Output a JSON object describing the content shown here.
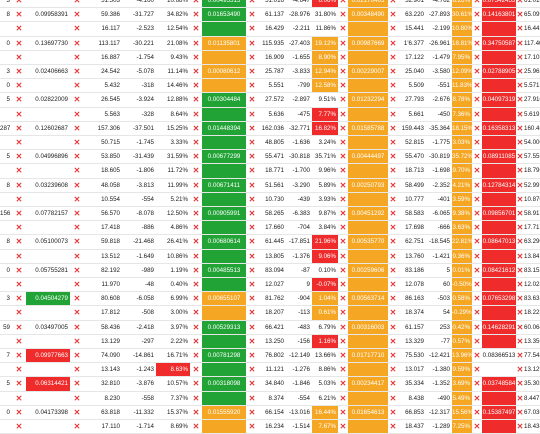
{
  "rows": [
    {
      "a": "3",
      "b1": "",
      "v1": "51.503",
      "v2": "-4.160",
      "p1": "10.68%",
      "g": "0.00495515",
      "g_color": "green",
      "r1": "51.016",
      "r2": "-4.647",
      "p2": "6.06%",
      "p2_hl": "red",
      "o": "0.02170405",
      "s1": "52.901",
      "s2": "-4.762",
      "p3": "8.26%",
      "p3_hl": "orange",
      "r": "0.07542453",
      "r_color": "red",
      "e": "61.016"
    },
    {
      "a": "8",
      "b1": "0.09958391",
      "v1": "59.386",
      "v2": "-31.727",
      "p1": "34.82%",
      "g": "0.01653490",
      "g_color": "green",
      "r1": "61.137",
      "r2": "-28.976",
      "p2": "31.80%",
      "p2_hl": "",
      "o": "0.00348490",
      "s1": "63.220",
      "s2": "-27.893",
      "p3": "30.61%",
      "p3_hl": "orange",
      "r": "0.14163801",
      "r_color": "red",
      "e": "65.099"
    },
    {
      "a": "",
      "b1": "",
      "v1": "16.117",
      "v2": "-2.523",
      "p1": "12.54%",
      "g": "",
      "g_color": "green",
      "r1": "16.429",
      "r2": "-2.211",
      "p2": "11.86%",
      "p2_hl": "",
      "o": "",
      "s1": "15.441",
      "s2": "-2.199",
      "p3": "10.80%",
      "p3_hl": "orange",
      "r": "",
      "r_color": "red",
      "e": "16.442"
    },
    {
      "a": "0",
      "b1": "0.13697730",
      "v1": "113.117",
      "v2": "-30.221",
      "p1": "21.08%",
      "g": "0.01135801",
      "g_color": "orange",
      "r1": "115.935",
      "r2": "-27.403",
      "p2": "19.12%",
      "p2_hl": "orange",
      "o": "0.00987669",
      "s1": "1'6.377",
      "s2": "-26.961",
      "p3": "18.81%",
      "p3_hl": "orange",
      "r": "0.34750587",
      "r_color": "red",
      "e": "117.400"
    },
    {
      "a": "",
      "b1": "",
      "v1": "16.887",
      "v2": "-1.754",
      "p1": "9.43%",
      "g": "",
      "g_color": "orange",
      "r1": "16.909",
      "r2": "-1.655",
      "p2": "8.90%",
      "p2_hl": "orange",
      "o": "",
      "s1": "17.122",
      "s2": "-1.479",
      "p3": "7.95%",
      "p3_hl": "orange",
      "r": "",
      "r_color": "red",
      "e": "17.103"
    },
    {
      "a": "3",
      "b1": "0.02406663",
      "v1": "24.542",
      "v2": "-5.078",
      "p1": "11.14%",
      "g": "0.00080612",
      "g_color": "orange",
      "r1": "25.787",
      "r2": "-3.833",
      "p2": "12.94%",
      "p2_hl": "orange",
      "o": "0.00229007",
      "s1": "25.040",
      "s2": "-3.580",
      "p3": "12.09%",
      "p3_hl": "orange",
      "r": "0.02788905",
      "r_color": "red",
      "e": "25.965"
    },
    {
      "a": "0",
      "b1": "",
      "v1": "5.432",
      "v2": "-318",
      "p1": "14.46%",
      "g": "",
      "g_color": "orange",
      "r1": "5.551",
      "p2": "12.58%",
      "r2": "-799",
      "p2_hl": "orange",
      "o": "",
      "s1": "5.509",
      "s2": "-551",
      "p3": "11.83%",
      "p3_hl": "orange",
      "r": "",
      "r_color": "red",
      "e": "5.571"
    },
    {
      "a": "5",
      "b1": "0.02822009",
      "v1": "26.545",
      "v2": "-3.924",
      "p1": "12.88%",
      "g": "0.00304484",
      "g_color": "green",
      "r1": "27.572",
      "r2": "-2.897",
      "p2": "9.51%",
      "p2_hl": "",
      "o": "0.01232294",
      "s1": "27.793",
      "s2": "-2.676",
      "p3": "8.78%",
      "p3_hl": "orange",
      "r": "0.04097319",
      "r_color": "red",
      "e": "27.910"
    },
    {
      "a": "",
      "b1": "",
      "v1": "5.563",
      "v2": "-328",
      "p1": "8.64%",
      "g": "",
      "g_color": "green",
      "r1": "5.636",
      "r2": "-475",
      "p2": "7.77%",
      "p2_hl": "red",
      "o": "",
      "s1": "5.661",
      "s2": "-450",
      "p3": "7.36%",
      "p3_hl": "orange",
      "r": "",
      "r_color": "red",
      "e": "5.619"
    },
    {
      "a": "287",
      "b1": "0.12602687",
      "v1": "157.306",
      "v2": "-37.501",
      "p1": "15.25%",
      "g": "0.01448394",
      "g_color": "green",
      "r1": "162.036",
      "r2": "-32.771",
      "p2": "16.82%",
      "p2_hl": "red",
      "o": "0.01585788",
      "s1": "159.443",
      "s2": "-35.364",
      "p3": "18.15%",
      "p3_hl": "orange",
      "r": "0.16358313",
      "r_color": "red",
      "e": "160.465"
    },
    {
      "a": "",
      "b1": "",
      "v1": "50.715",
      "v2": "-1.745",
      "p1": "3.33%",
      "g": "",
      "g_color": "green",
      "r1": "48.805",
      "r2": "-1.636",
      "p2": "3.24%",
      "p2_hl": "",
      "o": "",
      "s1": "52.815",
      "s2": "-1.775",
      "p3": "3.03%",
      "p3_hl": "orange",
      "r": "",
      "r_color": "red",
      "e": "54.000"
    },
    {
      "a": "5",
      "b1": "0.04996896",
      "v1": "53.850",
      "v2": "-31.439",
      "p1": "31.59%",
      "g": "0.00677299",
      "g_color": "green",
      "r1": "55.471",
      "r2": "-30.818",
      "p2": "35.71%",
      "p2_hl": "",
      "o": "0.00444497",
      "s1": "55.470",
      "s2": "-30.819",
      "p3": "35.72%",
      "p3_hl": "orange",
      "r": "0.08911085",
      "r_color": "red",
      "e": "57.555"
    },
    {
      "a": "",
      "b1": "",
      "v1": "18.605",
      "v2": "-1.806",
      "p1": "11.72%",
      "g": "",
      "g_color": "green",
      "r1": "18.771",
      "r2": "-1.700",
      "p2": "9.96%",
      "p2_hl": "",
      "o": "",
      "s1": "18.713",
      "s2": "-1.698",
      "p3": "9.70%",
      "p3_hl": "orange",
      "r": "",
      "r_color": "red",
      "e": "18.796"
    },
    {
      "a": "8",
      "b1": "0.03239608",
      "v1": "48.058",
      "v2": "-3.813",
      "p1": "11.99%",
      "g": "0.00671411",
      "g_color": "green",
      "r1": "51.561",
      "r2": "-3.290",
      "p2": "5.89%",
      "p2_hl": "",
      "o": "0.00250793",
      "s1": "58.499",
      "s2": "-2.352",
      "p3": "4.21%",
      "p3_hl": "orange",
      "r": "0.12784314",
      "r_color": "red",
      "e": "52.997"
    },
    {
      "a": "",
      "b1": "",
      "v1": "10.554",
      "v2": "-554",
      "p1": "5.21%",
      "g": "",
      "g_color": "green",
      "r1": "10.730",
      "r2": "-439",
      "p2": "3.93%",
      "p2_hl": "",
      "o": "",
      "s1": "10.777",
      "s2": "-401",
      "p3": "3.59%",
      "p3_hl": "orange",
      "r": "",
      "r_color": "red",
      "e": "10.870"
    },
    {
      "a": "156",
      "b1": "0.07782157",
      "v1": "56.570",
      "v2": "-8.078",
      "p1": "12.50%",
      "g": "0.00905991",
      "g_color": "green",
      "r1": "58.265",
      "r2": "-6.383",
      "p2": "9.87%",
      "p2_hl": "",
      "o": "0.00451292",
      "s1": "58.583",
      "s2": "-6.065",
      "p3": "9.38%",
      "p3_hl": "orange",
      "r": "0.09856701",
      "r_color": "red",
      "e": "58.917"
    },
    {
      "a": "",
      "b1": "",
      "v1": "17.418",
      "v2": "-886",
      "p1": "4.86%",
      "g": "",
      "g_color": "green",
      "r1": "17.660",
      "r2": "-704",
      "p2": "3.84%",
      "p2_hl": "",
      "o": "",
      "s1": "17.698",
      "s2": "-666",
      "p3": "3.63%",
      "p3_hl": "orange",
      "r": "",
      "r_color": "red",
      "e": "17.717"
    },
    {
      "a": "8",
      "b1": "0.05100073",
      "v1": "59.818",
      "v2": "-21.468",
      "p1": "26.41%",
      "g": "0.00680614",
      "g_color": "green",
      "r1": "61.445",
      "r2": "-17.851",
      "p2": "21.96%",
      "p2_hl": "red",
      "o": "0.00535770",
      "s1": "62.751",
      "s2": "-18.545",
      "p3": "22.81%",
      "p3_hl": "orange",
      "r": "0.08647013",
      "r_color": "red",
      "e": "63.290"
    },
    {
      "a": "",
      "b1": "",
      "v1": "13.512",
      "v2": "-1.649",
      "p1": "10.86%",
      "g": "",
      "g_color": "green",
      "r1": "13.805",
      "r2": "-1.376",
      "p2": "9.06%",
      "p2_hl": "red",
      "o": "",
      "s1": "13.760",
      "s2": "-1.421",
      "p3": "9.36%",
      "p3_hl": "orange",
      "r": "",
      "r_color": "red",
      "e": "13.841"
    },
    {
      "a": "0",
      "b1": "0.05755281",
      "v1": "82.192",
      "v2": "-989",
      "p1": "1.19%",
      "g": "0.00485513",
      "g_color": "green",
      "r1": "83.094",
      "r2": "-87",
      "p2": "0.10%",
      "p2_hl": "",
      "o": "0.00259606",
      "s1": "83.186",
      "s2": "5",
      "p3": "0.01%",
      "p3_hl": "orange",
      "r": "0.08421612",
      "r_color": "red",
      "e": "83.152"
    },
    {
      "a": "",
      "b1": "",
      "v1": "11.970",
      "v2": "-48",
      "p1": "0.40%",
      "g": "",
      "g_color": "green",
      "r1": "12.027",
      "r2": "9",
      "p2": "-0.07%",
      "p2_hl": "red",
      "o": "",
      "s1": "12.078",
      "s2": "60",
      "p3": "-0.50%",
      "p3_hl": "orange",
      "r": "",
      "r_color": "red",
      "e": "12.023"
    },
    {
      "a": "3",
      "b1": "0.04504279",
      "v1": "80.608",
      "v2": "-6.058",
      "p1": "6.99%",
      "g": "0.00655107",
      "g_color": "orange",
      "r1": "81.762",
      "r2": "-904",
      "p2": "1.04%",
      "p2_hl": "orange",
      "o": "0.00563714",
      "s1": "86.163",
      "s2": "-503",
      "p3": "0.58%",
      "p3_hl": "orange",
      "r": "0.07653298",
      "r_color": "red",
      "e": "83.632"
    },
    {
      "a": "",
      "b1": "",
      "v1": "17.812",
      "v2": "-508",
      "p1": "3.00%",
      "g": "",
      "g_color": "orange",
      "r1": "18.207",
      "r2": "-113",
      "p2": "0.61%",
      "p2_hl": "orange",
      "o": "",
      "s1": "18.374",
      "s2": "54",
      "p3": "-0.29%",
      "p3_hl": "orange",
      "r": "",
      "r_color": "red",
      "e": "18.223"
    },
    {
      "a": "59",
      "b1": "0.03497005",
      "v1": "58.436",
      "v2": "-2.418",
      "p1": "3.97%",
      "g": "0.00529313",
      "g_color": "green",
      "r1": "66.421",
      "r2": "-483",
      "p2": "6.79%",
      "p2_hl": "",
      "o": "0.00316003",
      "s1": "61.157",
      "s2": "253",
      "p3": "0.42%",
      "p3_hl": "orange",
      "r": "0.14628291",
      "r_color": "red",
      "e": "60.064"
    },
    {
      "a": "",
      "b1": "",
      "v1": "13.129",
      "v2": "-297",
      "p1": "2.22%",
      "g": "",
      "g_color": "green",
      "r1": "13.250",
      "r2": "-156",
      "p2": "1.16%",
      "p2_hl": "red",
      "o": "",
      "s1": "13.329",
      "s2": "-77",
      "p3": "0.57%",
      "p3_hl": "orange",
      "r": "",
      "r_color": "red",
      "e": "13.356"
    },
    {
      "a": "7",
      "b1": "0.09977663",
      "v1": "74.090",
      "v2": "-14.861",
      "p1": "16.71%",
      "g": "0.00781298",
      "g_color": "green",
      "r1": "76.802",
      "r2": "-12.149",
      "p2": "13.66%",
      "p2_hl": "",
      "o": "0.01717710",
      "s1": "75.530",
      "s2": "-12.421",
      "p3": "13.96%",
      "p3_hl": "orange",
      "r": "0.08366513",
      "r_color": "white",
      "e": "77.548"
    },
    {
      "a": "",
      "b1": "",
      "v1": "13.143",
      "v2": "-1.243",
      "p1": "8.63%",
      "p1_hl": "red",
      "g": "",
      "g_color": "green",
      "r1": "11.121",
      "r2": "-1.276",
      "p2": "8.86%",
      "p2_hl": "",
      "o": "",
      "s1": "13.017",
      "s2": "-1.380",
      "p3": "9.59%",
      "p3_hl": "orange",
      "r": "",
      "r_color": "white",
      "e": "13.129"
    },
    {
      "a": "5",
      "b1": "0.06314421",
      "v1": "32.810",
      "v2": "-3.876",
      "p1": "10.57%",
      "g": "0.00318098",
      "g_color": "green",
      "r1": "34.840",
      "r2": "-1.846",
      "p2": "5.03%",
      "p2_hl": "",
      "o": "0.00234417",
      "s1": "35.334",
      "s2": "-1.352",
      "p3": "3.69%",
      "p3_hl": "orange",
      "r": "0.03748584",
      "r_color": "red",
      "e": "35.302"
    },
    {
      "a": "",
      "b1": "",
      "v1": "8.230",
      "v2": "-558",
      "p1": "7.37%",
      "g": "",
      "g_color": "green",
      "r1": "8.374",
      "r2": "-554",
      "p2": "6.21%",
      "p2_hl": "",
      "o": "",
      "s1": "8.438",
      "s2": "-490",
      "p3": "5.49%",
      "p3_hl": "orange",
      "r": "",
      "r_color": "red",
      "e": "8.447"
    },
    {
      "a": "0",
      "b1": "0.04173398",
      "v1": "63.818",
      "v2": "-11.332",
      "p1": "15.37%",
      "g": "0.01555920",
      "g_color": "orange",
      "r1": "66.154",
      "r2": "-13.016",
      "p2": "16.44%",
      "p2_hl": "orange",
      "o": "0.01654613",
      "s1": "66.853",
      "s2": "-12.317",
      "p3": "15.56%",
      "p3_hl": "orange",
      "r": "0.15387497",
      "r_color": "red",
      "e": "67.036"
    },
    {
      "a": "",
      "b1": "",
      "v1": "17.110",
      "v2": "-1.714",
      "p1": "8.69%",
      "g": "",
      "g_color": "orange",
      "r1": "16.234",
      "r2": "-1.514",
      "p2": "7.67%",
      "p2_hl": "orange",
      "o": "",
      "s1": "18.437",
      "s2": "-1.289",
      "p3": "7.25%",
      "p3_hl": "orange",
      "r": "",
      "r_color": "red",
      "e": "18.438"
    }
  ]
}
